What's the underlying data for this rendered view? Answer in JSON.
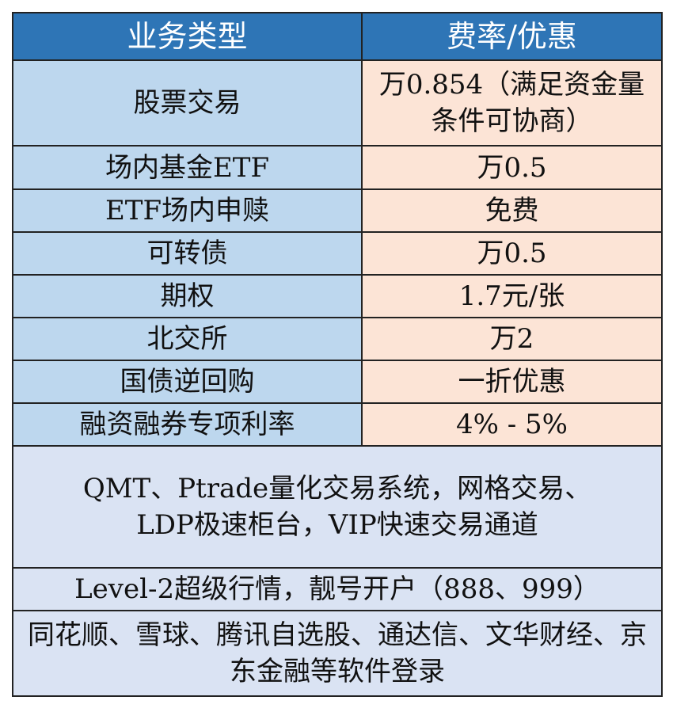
{
  "table": {
    "header": [
      "业务类型",
      "费率/优惠"
    ],
    "rows": [
      [
        "股票交易",
        "万0.854（满足资金量条件可协商）"
      ],
      [
        "场内基金ETF",
        "万0.5"
      ],
      [
        "ETF场内申赎",
        "免费"
      ],
      [
        "可转债",
        "万0.5"
      ],
      [
        "期权",
        "1.7元/张"
      ],
      [
        "北交所",
        "万2"
      ],
      [
        "国债逆回购",
        "一折优惠"
      ],
      [
        "融资融券专项利率",
        "4% - 5%"
      ]
    ],
    "notes": [
      "QMT、Ptrade量化交易系统，网格交易、LDP极速柜台，VIP快速交易通道",
      "Level-2超级行情，靓号开户（888、999）",
      "同花顺、雪球、腾讯自选股、通达信、文华财经、京东金融等软件登录"
    ]
  }
}
